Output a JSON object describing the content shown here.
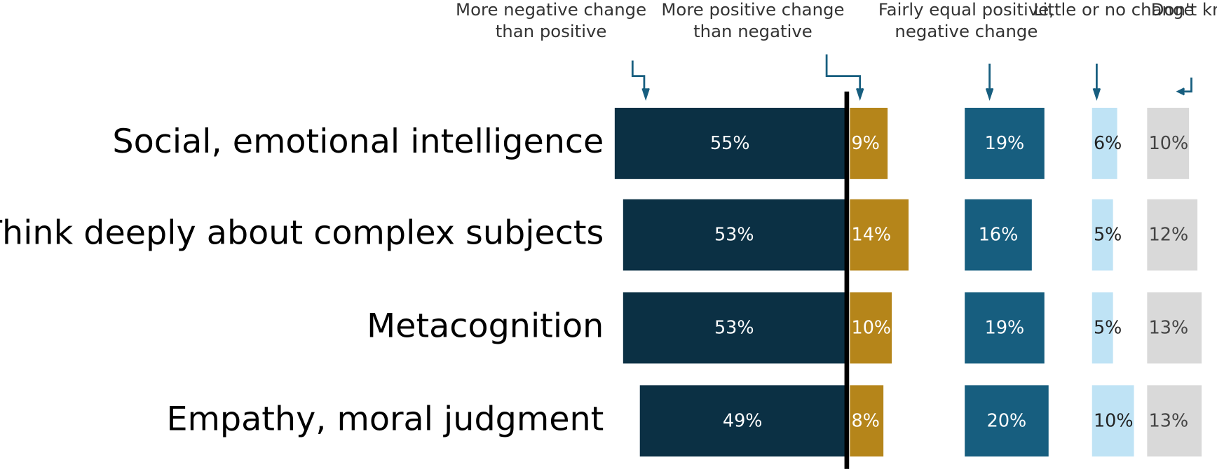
{
  "chart_data": {
    "type": "bar",
    "orientation": "horizontal",
    "categories": [
      "Social, emotional intelligence",
      "Think deeply about complex subjects",
      "Metacognition",
      "Empathy, moral judgment"
    ],
    "series": [
      {
        "name": "More negative change than positive",
        "color": "#0b3044",
        "values": [
          55,
          53,
          53,
          49
        ],
        "value_labels": [
          "55%",
          "53%",
          "53%",
          "49%"
        ]
      },
      {
        "name": "More positive change than negative",
        "color": "#b5851a",
        "values": [
          9,
          14,
          10,
          8
        ],
        "value_labels": [
          "9%",
          "14%",
          "10%",
          "8%"
        ]
      },
      {
        "name": "Fairly equal positive, negative change",
        "color": "#175e7f",
        "values": [
          19,
          16,
          19,
          20
        ],
        "value_labels": [
          "19%",
          "16%",
          "19%",
          "20%"
        ]
      },
      {
        "name": "Little or no change",
        "color": "#bfe3f5",
        "values": [
          6,
          5,
          5,
          10
        ],
        "value_labels": [
          "6%",
          "5%",
          "5%",
          "10%"
        ]
      },
      {
        "name": "Don't know",
        "color": "#d9d9d9",
        "values": [
          10,
          12,
          13,
          13
        ],
        "value_labels": [
          "10%",
          "12%",
          "13%",
          "13%"
        ]
      }
    ]
  }
}
